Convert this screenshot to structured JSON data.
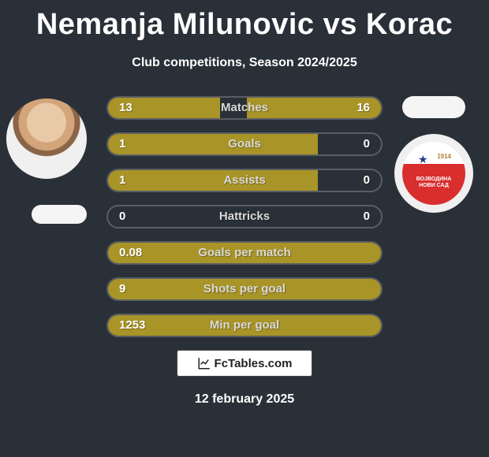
{
  "title": "Nemanja Milunovic vs Korac",
  "subtitle": "Club competitions, Season 2024/2025",
  "date": "12 february 2025",
  "footer_brand": "FcTables.com",
  "colors": {
    "background": "#2a3038",
    "bar_fill": "#a89427",
    "bar_border": "rgba(180,180,180,0.35)",
    "text_white": "#ffffff",
    "label_gray": "#d8d8d8"
  },
  "crest": {
    "year": "1914",
    "text_line1": "ВОЈВОДИНА",
    "text_line2": "НОВИ САД"
  },
  "rows": [
    {
      "label": "Matches",
      "left_val": "13",
      "right_val": "16",
      "left_pct": 41,
      "right_pct": 49
    },
    {
      "label": "Goals",
      "left_val": "1",
      "right_val": "0",
      "left_pct": 77,
      "right_pct": 0
    },
    {
      "label": "Assists",
      "left_val": "1",
      "right_val": "0",
      "left_pct": 77,
      "right_pct": 0
    },
    {
      "label": "Hattricks",
      "left_val": "0",
      "right_val": "0",
      "left_pct": 0,
      "right_pct": 0
    },
    {
      "label": "Goals per match",
      "left_val": "0.08",
      "right_val": "",
      "left_pct": 100,
      "right_pct": 0
    },
    {
      "label": "Shots per goal",
      "left_val": "9",
      "right_val": "",
      "left_pct": 100,
      "right_pct": 0
    },
    {
      "label": "Min per goal",
      "left_val": "1253",
      "right_val": "",
      "left_pct": 100,
      "right_pct": 0
    }
  ]
}
